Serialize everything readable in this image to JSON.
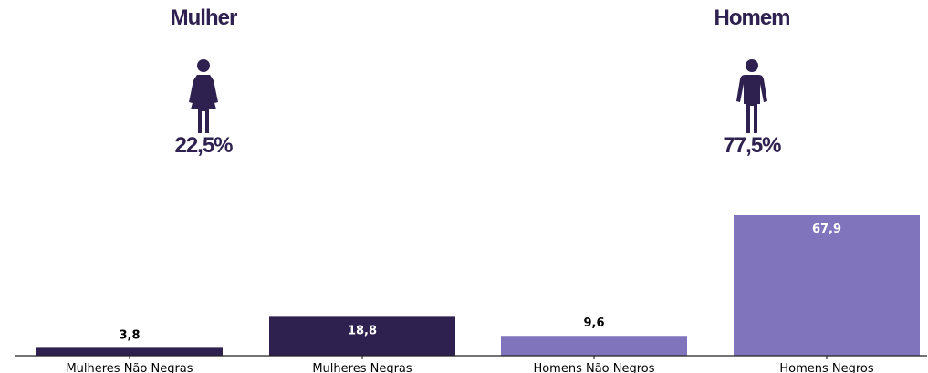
{
  "panels": {
    "women": {
      "title": "Mulher",
      "percent": "22,5%",
      "icon": "woman-icon",
      "color": "#2e2150"
    },
    "men": {
      "title": "Homem",
      "percent": "77,5%",
      "icon": "man-icon",
      "color": "#2e2150"
    }
  },
  "chart_data": {
    "type": "bar",
    "categories": [
      "Mulheres Não Negras",
      "Mulheres Negras",
      "Homens Não Negros",
      "Homens Negros"
    ],
    "values": [
      3.8,
      18.8,
      9.6,
      67.9
    ],
    "value_labels": [
      "3,8",
      "18,8",
      "9,6",
      "67,9"
    ],
    "colors": [
      "#2e2150",
      "#2e2150",
      "#8075bd",
      "#8075bd"
    ],
    "ylim": [
      0,
      70
    ],
    "title": "",
    "xlabel": "",
    "ylabel": "",
    "grid": false
  }
}
